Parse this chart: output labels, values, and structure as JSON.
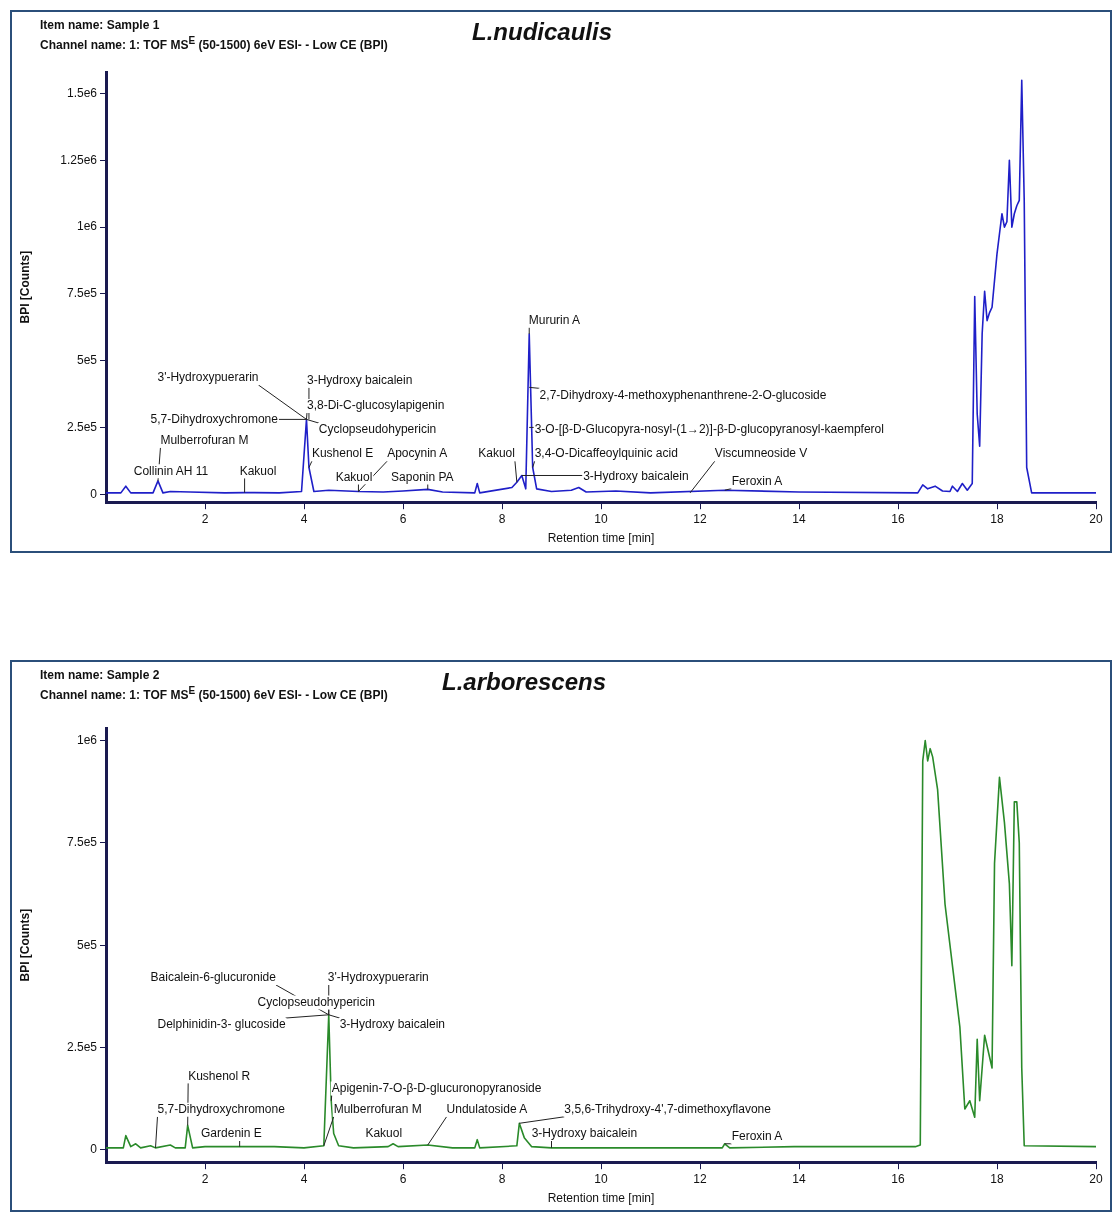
{
  "chart_data": [
    {
      "type": "line",
      "title": "L.nudicaulis",
      "subtitle": "Item name: Sample 1",
      "xlabel": "Retention time [min]",
      "ylabel": "BPI [Counts]",
      "annotations": [
        "Channel name: 1: TOF MS$^{E}$ (50-1500) 6eV ESI- - Low CE (BPI)",
        {
          "text": "3'-Hydroxypuerarin",
          "x": 4.05,
          "y": 280000
        },
        {
          "text": "3-Hydroxy baicalein",
          "x": 4.1,
          "y": 280000
        },
        {
          "text": "3,8-Di-C-glucosylapigenin",
          "x": 4.05,
          "y": 280000
        },
        {
          "text": "5,7-Dihydroxychromone",
          "x": 4.05,
          "y": 280000
        },
        {
          "text": "Mulberrofuran M",
          "x": 1.05,
          "y": 50000
        },
        {
          "text": "Cyclopseudohypericin",
          "x": 4.05,
          "y": 280000
        },
        {
          "text": "Kushenol E",
          "x": 4.1,
          "y": 100000
        },
        {
          "text": "Apocynin A",
          "x": 5.1,
          "y": 10000
        },
        {
          "text": "Collinin AH 11",
          "x": 1.05,
          "y": 50000
        },
        {
          "text": "Kakuol",
          "x": 2.8,
          "y": 6000
        },
        {
          "text": "Kakuol",
          "x": 5.1,
          "y": 10000
        },
        {
          "text": "Saponin PA",
          "x": 6.5,
          "y": 18000
        },
        {
          "text": "Kakuol",
          "x": 8.3,
          "y": 45000
        },
        {
          "text": "Mururin A",
          "x": 8.55,
          "y": 600000
        },
        {
          "text": "2,7-Dihydroxy-4-methoxyphenanthrene-2-O-glucoside",
          "x": 8.55,
          "y": 400000
        },
        {
          "text": "3-O-[β-D-Glucopyra-nosyl-(1→2)]-β-D-glucopyranosyl-kaempferol",
          "x": 8.55,
          "y": 250000
        },
        {
          "text": "3,4-O-Dicaffeoylquinic acid",
          "x": 8.62,
          "y": 100000
        },
        {
          "text": "Viscumneoside V",
          "x": 11.8,
          "y": 5000
        },
        {
          "text": "3-Hydroxy baicalein",
          "x": 8.4,
          "y": 70000
        },
        {
          "text": "Feroxin A",
          "x": 12.5,
          "y": 15000
        }
      ],
      "series": [
        {
          "color": "#1f1fc8",
          "x": [
            0,
            0.3,
            0.4,
            0.5,
            0.95,
            1.05,
            1.15,
            1.3,
            1.7,
            2.4,
            2.8,
            3.5,
            3.95,
            4.05,
            4.1,
            4.2,
            4.5,
            5.1,
            5.6,
            6.0,
            6.5,
            6.8,
            7.45,
            7.5,
            7.55,
            8.2,
            8.3,
            8.4,
            8.48,
            8.55,
            8.62,
            8.7,
            9.0,
            9.4,
            9.55,
            9.7,
            10.3,
            11.0,
            12.5,
            14.0,
            16.4,
            16.5,
            16.6,
            16.75,
            16.9,
            17.05,
            17.1,
            17.2,
            17.3,
            17.4,
            17.5,
            17.55,
            17.6,
            17.65,
            17.7,
            17.75,
            17.8,
            17.85,
            17.9,
            18.0,
            18.1,
            18.15,
            18.2,
            18.25,
            18.3,
            18.35,
            18.4,
            18.45,
            18.5,
            18.55,
            18.6,
            18.7,
            20
          ],
          "values": [
            5000,
            5000,
            30000,
            5000,
            5000,
            50000,
            5000,
            10000,
            8000,
            5000,
            6000,
            5000,
            10000,
            280000,
            100000,
            10000,
            15000,
            10000,
            8000,
            12000,
            18000,
            8000,
            5000,
            40000,
            5000,
            25000,
            45000,
            70000,
            20000,
            600000,
            100000,
            20000,
            10000,
            15000,
            25000,
            8000,
            12000,
            5000,
            15000,
            8000,
            5000,
            35000,
            20000,
            30000,
            12000,
            10000,
            30000,
            10000,
            40000,
            15000,
            40000,
            740000,
            300000,
            180000,
            600000,
            760000,
            650000,
            680000,
            700000,
            900000,
            1050000,
            1000000,
            1020000,
            1250000,
            1000000,
            1050000,
            1080000,
            1100000,
            1550000,
            1100000,
            100000,
            5000,
            5000
          ]
        }
      ],
      "xlim": [
        0,
        20
      ],
      "xticks": [
        2,
        4,
        6,
        8,
        10,
        12,
        14,
        16,
        18,
        20
      ],
      "ylim": [
        -30000,
        1580000
      ],
      "yticks": [
        {
          "value": 0,
          "label": "0"
        },
        {
          "value": 250000,
          "label": "2.5e5"
        },
        {
          "value": 500000,
          "label": "5e5"
        },
        {
          "value": 750000,
          "label": "7.5e5"
        },
        {
          "value": 1000000,
          "label": "1e6"
        },
        {
          "value": 1250000,
          "label": "1.25e6"
        },
        {
          "value": 1500000,
          "label": "1.5e6"
        }
      ]
    },
    {
      "type": "line",
      "title": "L.arborescens",
      "subtitle": "Item name: Sample 2",
      "xlabel": "Retention time [min]",
      "ylabel": "BPI [Counts]",
      "annotations": [
        "Channel name: 1: TOF MS$^{E}$ (50-1500) 6eV ESI- - Low CE (BPI)",
        {
          "text": "Baicalein-6-glucuronide",
          "x": 4.5,
          "y": 330000
        },
        {
          "text": "3'-Hydroxypuerarin",
          "x": 4.5,
          "y": 330000
        },
        {
          "text": "Cyclopseudohypericin",
          "x": 4.5,
          "y": 330000
        },
        {
          "text": "Delphinidin-3- glucoside",
          "x": 4.5,
          "y": 330000
        },
        {
          "text": "3-Hydroxy baicalein",
          "x": 4.5,
          "y": 330000
        },
        {
          "text": "Kushenol R",
          "x": 1.65,
          "y": 60000
        },
        {
          "text": "Apigenin-7-O-β-D-glucuronopyranoside",
          "x": 4.55,
          "y": 120000
        },
        {
          "text": "5,7-Dihydroxychromone",
          "x": 1.0,
          "y": 5000
        },
        {
          "text": "Mulberrofuran M",
          "x": 4.4,
          "y": 10000
        },
        {
          "text": "Undulatoside A",
          "x": 6.5,
          "y": 12000
        },
        {
          "text": "3,5,6-Trihydroxy-4',7-dimethoxyflavone",
          "x": 8.35,
          "y": 65000
        },
        {
          "text": "Gardenin E",
          "x": 2.7,
          "y": 8000
        },
        {
          "text": "Kakuol",
          "x": 5.8,
          "y": 15000
        },
        {
          "text": "3-Hydroxy baicalein",
          "x": 9.0,
          "y": 5000
        },
        {
          "text": "Feroxin A",
          "x": 12.5,
          "y": 15000
        }
      ],
      "series": [
        {
          "color": "#2a8a2a",
          "x": [
            0,
            0.35,
            0.4,
            0.5,
            0.6,
            0.7,
            0.9,
            1.0,
            1.3,
            1.4,
            1.6,
            1.65,
            1.75,
            2.0,
            2.7,
            3.4,
            4.0,
            4.4,
            4.5,
            4.55,
            4.6,
            4.7,
            5.0,
            5.7,
            5.8,
            5.9,
            6.5,
            7.0,
            7.45,
            7.5,
            7.55,
            8.3,
            8.35,
            8.45,
            8.6,
            9.0,
            12.45,
            12.5,
            12.6,
            13.9,
            16.35,
            16.45,
            16.5,
            16.55,
            16.6,
            16.65,
            16.7,
            16.8,
            16.95,
            17.1,
            17.25,
            17.35,
            17.45,
            17.55,
            17.6,
            17.65,
            17.75,
            17.9,
            17.95,
            18.05,
            18.15,
            18.25,
            18.3,
            18.35,
            18.4,
            18.45,
            18.5,
            18.55,
            20
          ],
          "values": [
            5000,
            5000,
            35000,
            8000,
            15000,
            5000,
            10000,
            5000,
            12000,
            5000,
            5000,
            60000,
            5000,
            8000,
            8000,
            8000,
            5000,
            10000,
            330000,
            120000,
            40000,
            10000,
            5000,
            8000,
            15000,
            8000,
            12000,
            5000,
            5000,
            25000,
            5000,
            10000,
            65000,
            30000,
            8000,
            5000,
            5000,
            15000,
            5000,
            8000,
            8000,
            12000,
            950000,
            1000000,
            950000,
            980000,
            960000,
            880000,
            600000,
            450000,
            300000,
            100000,
            120000,
            80000,
            270000,
            120000,
            280000,
            200000,
            700000,
            910000,
            800000,
            650000,
            450000,
            850000,
            850000,
            750000,
            200000,
            10000,
            8000
          ]
        }
      ],
      "xlim": [
        0,
        20
      ],
      "xticks": [
        2,
        4,
        6,
        8,
        10,
        12,
        14,
        16,
        18,
        20
      ],
      "ylim": [
        -30000,
        1030000
      ],
      "yticks": [
        {
          "value": 0,
          "label": "0"
        },
        {
          "value": 250000,
          "label": "2.5e5"
        },
        {
          "value": 500000,
          "label": "5e5"
        },
        {
          "value": 750000,
          "label": "7.5e5"
        },
        {
          "value": 1000000,
          "label": "1e6"
        }
      ]
    }
  ]
}
